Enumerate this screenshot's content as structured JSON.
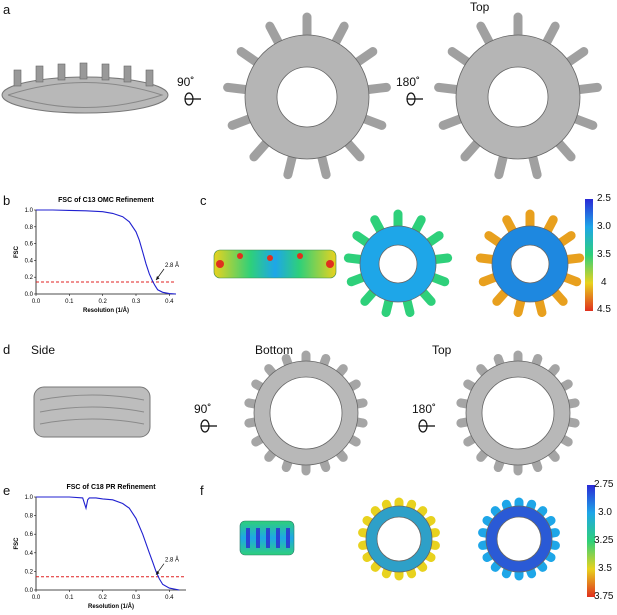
{
  "panels": {
    "a": {
      "letter": "a",
      "top_label": "Top",
      "rot1": "90˚",
      "rot2": "180˚"
    },
    "b": {
      "letter": "b"
    },
    "c": {
      "letter": "c",
      "colorbar": {
        "ticks": [
          "2.5",
          "3.0",
          "3.5",
          "4",
          "4.5"
        ],
        "colors": [
          "#2a2ad6",
          "#1ea6e8",
          "#2ed07a",
          "#e8d21e",
          "#e0301e"
        ]
      }
    },
    "d": {
      "letter": "d",
      "side_label": "Side",
      "bottom_label": "Bottom",
      "top_label": "Top",
      "rot1": "90˚",
      "rot2": "180˚"
    },
    "e": {
      "letter": "e"
    },
    "f": {
      "letter": "f",
      "colorbar": {
        "ticks": [
          "2.75",
          "3.0",
          "3.25",
          "3.5",
          "3.75"
        ],
        "colors": [
          "#2a2ad6",
          "#1ea6e8",
          "#2ed07a",
          "#e8d21e",
          "#e0301e"
        ]
      }
    }
  },
  "chart_data": [
    {
      "type": "line",
      "title": "FSC of C13 OMC Refinement",
      "xlabel": "Resolution (1/Å)",
      "ylabel": "FSC",
      "xlim": [
        0.0,
        0.42
      ],
      "ylim": [
        0.0,
        1.0
      ],
      "xticks": [
        "0.0",
        "0.1",
        "0.2",
        "0.3",
        "0.4"
      ],
      "yticks": [
        "0.0",
        "0.2",
        "0.4",
        "0.6",
        "0.8",
        "1.0"
      ],
      "threshold": 0.143,
      "annotation": "2.8 Å",
      "series": [
        {
          "x": [
            0.0,
            0.05,
            0.1,
            0.15,
            0.2,
            0.23,
            0.26,
            0.28,
            0.3,
            0.31,
            0.32,
            0.33,
            0.34,
            0.35,
            0.357,
            0.365,
            0.38,
            0.4,
            0.42
          ],
          "y": [
            1.0,
            1.0,
            0.995,
            0.99,
            0.98,
            0.96,
            0.92,
            0.86,
            0.74,
            0.64,
            0.5,
            0.36,
            0.24,
            0.15,
            0.1,
            0.05,
            0.02,
            0.005,
            0.0
          ]
        }
      ]
    },
    {
      "type": "line",
      "title": "FSC of C18 PR Refinement",
      "xlabel": "Resolution (1/Å)",
      "ylabel": "FSC",
      "xlim": [
        0.0,
        0.45
      ],
      "ylim": [
        0.0,
        1.0
      ],
      "xticks": [
        "0.0",
        "0.1",
        "0.2",
        "0.3",
        "0.4"
      ],
      "yticks": [
        "0.0",
        "0.2",
        "0.4",
        "0.6",
        "0.8",
        "1.0"
      ],
      "threshold": 0.143,
      "annotation": "2.8 Å",
      "series": [
        {
          "x": [
            0.0,
            0.05,
            0.1,
            0.14,
            0.15,
            0.155,
            0.16,
            0.18,
            0.2,
            0.23,
            0.26,
            0.28,
            0.3,
            0.32,
            0.34,
            0.35,
            0.36,
            0.37,
            0.38,
            0.4,
            0.43
          ],
          "y": [
            1.0,
            1.0,
            1.0,
            0.99,
            0.88,
            0.97,
            0.99,
            0.99,
            0.98,
            0.97,
            0.93,
            0.88,
            0.77,
            0.6,
            0.4,
            0.3,
            0.2,
            0.12,
            0.06,
            0.02,
            0.0
          ]
        }
      ]
    }
  ]
}
